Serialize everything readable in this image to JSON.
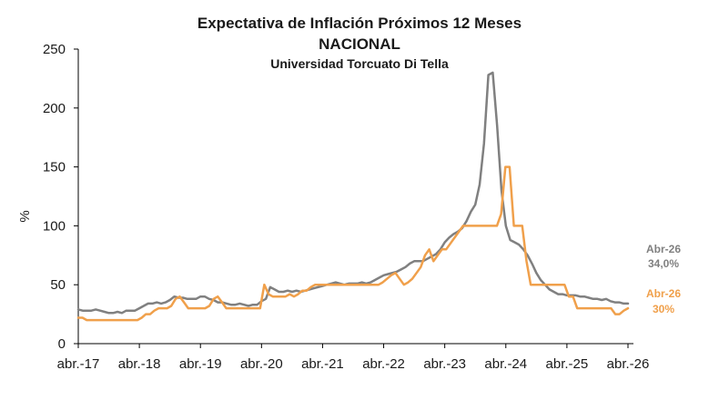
{
  "chart_data": {
    "type": "line",
    "title": "Expectativa de Inflación Próximos 12 Meses",
    "subtitle": "NACIONAL",
    "source": "Universidad Torcuato Di Tella",
    "xlabel": "",
    "ylabel": "%",
    "ylim": [
      0,
      250
    ],
    "yticks": [
      0,
      50,
      100,
      150,
      200,
      250
    ],
    "x_start": "abr.-17",
    "x_end": "abr.-26",
    "xticks": [
      "abr.-17",
      "abr.-18",
      "abr.-19",
      "abr.-20",
      "abr.-21",
      "abr.-22",
      "abr.-23",
      "abr.-24",
      "abr.-25",
      "abr.-26"
    ],
    "grid": false,
    "colors": {
      "gray": "#808080",
      "orange": "#f0a04b",
      "axis": "#000000"
    },
    "series": [
      {
        "values": [
          29,
          28,
          28,
          28,
          29,
          28,
          27,
          26,
          26,
          27,
          26,
          28,
          28,
          28,
          30,
          32,
          34,
          34,
          35,
          34,
          35,
          37,
          40,
          39,
          39,
          38,
          38,
          38,
          40,
          40,
          38,
          37,
          35,
          35,
          34,
          33,
          33,
          34,
          33,
          32,
          33,
          33,
          36,
          38,
          48,
          46,
          44,
          44,
          45,
          44,
          45,
          44,
          45,
          46,
          47,
          48,
          49,
          50,
          51,
          52,
          51,
          50,
          51,
          51,
          51,
          52,
          51,
          52,
          54,
          56,
          58,
          59,
          60,
          61,
          63,
          65,
          68,
          70,
          70,
          70,
          72,
          74,
          76,
          80,
          86,
          90,
          93,
          95,
          98,
          104,
          112,
          118,
          135,
          170,
          228,
          230,
          185,
          130,
          100,
          88,
          86,
          84,
          80,
          75,
          68,
          60,
          54,
          50,
          46,
          44,
          42,
          42,
          41,
          41,
          41,
          40,
          40,
          39,
          38,
          38,
          37,
          38,
          36,
          35,
          35,
          34,
          34
        ],
        "end_label": "Abr-26",
        "end_value_label": "34,0%",
        "color": "#808080"
      },
      {
        "values": [
          22,
          22,
          20,
          20,
          20,
          20,
          20,
          20,
          20,
          20,
          20,
          20,
          20,
          20,
          20,
          22,
          25,
          25,
          28,
          30,
          30,
          30,
          32,
          38,
          40,
          35,
          30,
          30,
          30,
          30,
          30,
          32,
          38,
          40,
          35,
          30,
          30,
          30,
          30,
          30,
          30,
          30,
          30,
          30,
          50,
          42,
          40,
          40,
          40,
          40,
          42,
          40,
          42,
          45,
          45,
          48,
          50,
          50,
          50,
          50,
          50,
          50,
          50,
          50,
          50,
          50,
          50,
          50,
          50,
          50,
          50,
          50,
          52,
          55,
          58,
          60,
          55,
          50,
          52,
          55,
          60,
          65,
          75,
          80,
          70,
          75,
          80,
          80,
          85,
          90,
          95,
          100,
          100,
          100,
          100,
          100,
          100,
          100,
          100,
          100,
          110,
          150,
          150,
          100,
          100,
          100,
          70,
          50,
          50,
          50,
          50,
          50,
          50,
          50,
          50,
          50,
          40,
          40,
          30,
          30,
          30,
          30,
          30,
          30,
          30,
          30,
          30,
          25,
          25,
          28,
          30
        ],
        "end_label": "Abr-26",
        "end_value_label": "30%",
        "color": "#f0a04b"
      }
    ]
  }
}
